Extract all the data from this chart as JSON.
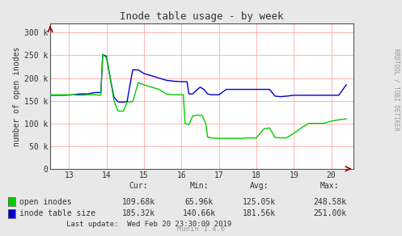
{
  "title": "Inode table usage - by week",
  "ylabel": "number of open inodes",
  "side_label": "RRDTOOL / TOBI OETIKER",
  "bottom_label": "Munin 1.4.6",
  "xmin": 12.5,
  "xmax": 20.6,
  "ymin": 0,
  "ymax": 320000,
  "yticks": [
    0,
    50000,
    100000,
    150000,
    200000,
    250000,
    300000
  ],
  "ytick_labels": [
    "0",
    "50 k",
    "100 k",
    "150 k",
    "200 k",
    "250 k",
    "300 k"
  ],
  "xticks": [
    13,
    14,
    15,
    16,
    17,
    18,
    19,
    20
  ],
  "bg_color": "#E8E8E8",
  "plot_bg_color": "#FFFFFF",
  "grid_color": "#FF9999",
  "green_color": "#00CC00",
  "blue_color": "#0000CC",
  "legend_green": "open inodes",
  "legend_blue": "inode table size",
  "cur_label": "Cur:",
  "min_label": "Min:",
  "avg_label": "Avg:",
  "max_label": "Max:",
  "open_cur": "109.68k",
  "open_min": "65.96k",
  "open_avg": "125.05k",
  "open_max": "248.58k",
  "inode_cur": "185.32k",
  "inode_min": "140.66k",
  "inode_avg": "181.56k",
  "inode_max": "251.00k",
  "last_update": "Last update:  Wed Feb 20 23:30:09 2019",
  "open_inodes_x": [
    12.5,
    12.7,
    12.9,
    13.1,
    13.3,
    13.5,
    13.7,
    13.85,
    13.9,
    14.0,
    14.1,
    14.2,
    14.3,
    14.35,
    14.45,
    14.55,
    14.7,
    14.85,
    15.0,
    15.2,
    15.4,
    15.6,
    15.8,
    16.0,
    16.05,
    16.1,
    16.2,
    16.3,
    16.4,
    16.5,
    16.55,
    16.65,
    16.7,
    16.8,
    17.0,
    17.2,
    17.4,
    17.6,
    17.8,
    18.0,
    18.2,
    18.35,
    18.5,
    18.65,
    18.8,
    19.0,
    19.2,
    19.4,
    19.6,
    19.8,
    20.0,
    20.2,
    20.4
  ],
  "open_inodes_y": [
    163000,
    163000,
    163000,
    163000,
    162000,
    163000,
    163000,
    162000,
    252000,
    245000,
    200000,
    150000,
    128000,
    127000,
    127000,
    147000,
    148000,
    190000,
    185000,
    180000,
    175000,
    165000,
    163000,
    163000,
    163000,
    100000,
    97000,
    116000,
    118000,
    118000,
    118000,
    100000,
    70000,
    68000,
    67000,
    67000,
    67000,
    67000,
    68000,
    68000,
    88000,
    90000,
    69000,
    68000,
    68000,
    78000,
    90000,
    100000,
    100000,
    100000,
    105000,
    108000,
    110000
  ],
  "inode_size_x": [
    12.5,
    12.7,
    12.9,
    13.1,
    13.3,
    13.5,
    13.7,
    13.85,
    13.9,
    14.0,
    14.1,
    14.2,
    14.3,
    14.35,
    14.45,
    14.55,
    14.7,
    14.85,
    15.0,
    15.2,
    15.4,
    15.6,
    15.8,
    16.0,
    16.05,
    16.1,
    16.15,
    16.2,
    16.3,
    16.5,
    16.6,
    16.7,
    16.8,
    17.0,
    17.2,
    17.4,
    17.6,
    17.8,
    18.0,
    18.2,
    18.35,
    18.5,
    18.65,
    18.8,
    19.0,
    19.1,
    19.2,
    19.4,
    19.6,
    19.8,
    20.0,
    20.2,
    20.4
  ],
  "inode_size_y": [
    162000,
    162000,
    162000,
    163000,
    165000,
    165000,
    168000,
    168000,
    252000,
    248000,
    200000,
    158000,
    148000,
    147000,
    147000,
    148000,
    218000,
    218000,
    210000,
    205000,
    200000,
    195000,
    193000,
    192000,
    192000,
    192000,
    192000,
    165000,
    165000,
    180000,
    175000,
    165000,
    163000,
    163000,
    175000,
    175000,
    175000,
    175000,
    175000,
    175000,
    175000,
    160000,
    159000,
    160000,
    162000,
    162000,
    162000,
    162000,
    162000,
    162000,
    162000,
    162000,
    185000
  ]
}
